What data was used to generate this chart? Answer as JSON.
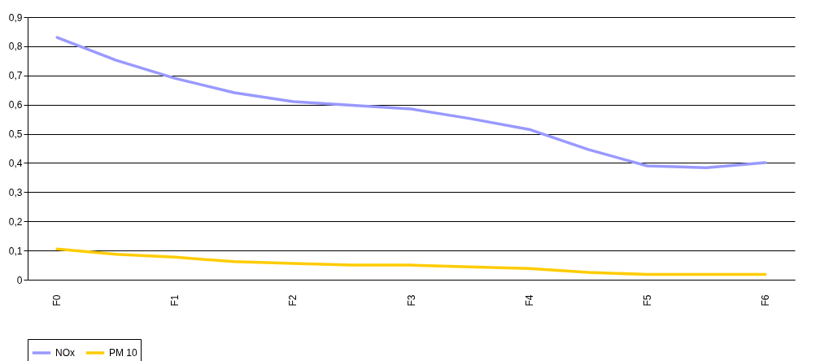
{
  "chart_data": {
    "type": "line",
    "categories": [
      "F0",
      null,
      "F1",
      null,
      "F2",
      null,
      "F3",
      null,
      "F4",
      null,
      "F5",
      null,
      "F6"
    ],
    "series": [
      {
        "name": "NOx",
        "color": "#9999ff",
        "values": [
          0.83,
          0.752,
          0.69,
          0.641,
          0.61,
          0.598,
          0.585,
          0.552,
          0.515,
          0.446,
          0.39,
          0.384,
          0.401
        ]
      },
      {
        "name": "PM 10",
        "color": "#ffcc00",
        "values": [
          0.105,
          0.087,
          0.077,
          0.062,
          0.056,
          0.05,
          0.05,
          0.044,
          0.038,
          0.025,
          0.018,
          0.018,
          0.018
        ]
      }
    ],
    "ylim": [
      0,
      0.9
    ],
    "yticks": [
      0,
      {
        "value": 0.1,
        "label": "0,1"
      },
      {
        "value": 0.2,
        "label": "0,2"
      },
      {
        "value": 0.3,
        "label": "0,3"
      },
      {
        "value": 0.4,
        "label": "0,4"
      },
      {
        "value": 0.5,
        "label": "0,5"
      },
      {
        "value": 0.6,
        "label": "0,6"
      },
      {
        "value": 0.7,
        "label": "0,7"
      },
      {
        "value": 0.8,
        "label": "0,8"
      },
      {
        "value": 0.9,
        "label": "0,9"
      }
    ],
    "grid": "y",
    "legend": "bottom",
    "marker": "none",
    "line_style": "solid"
  }
}
